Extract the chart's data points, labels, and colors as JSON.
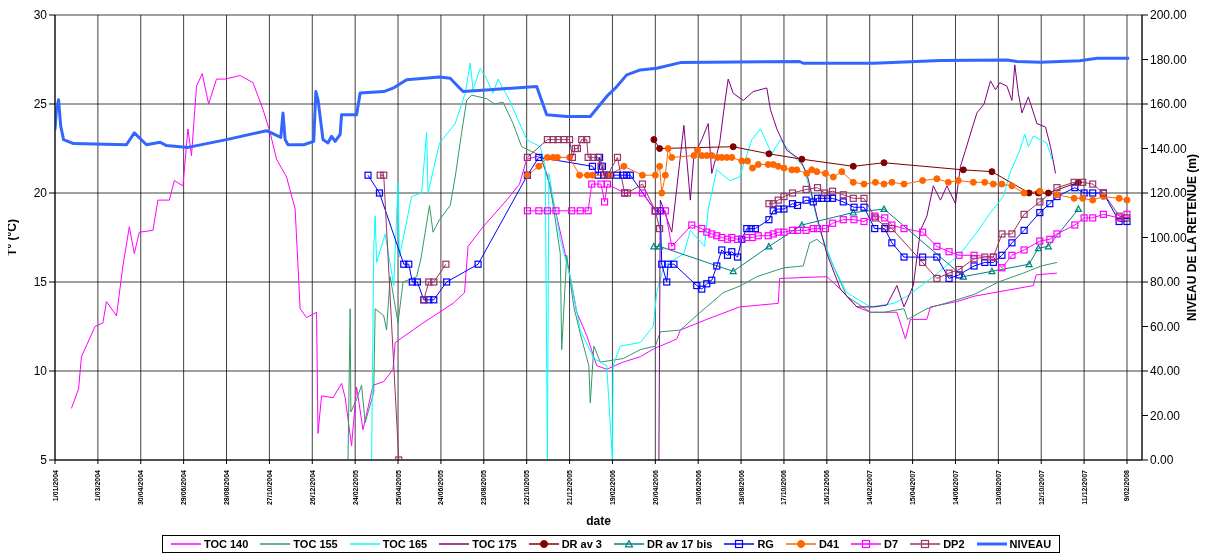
{
  "chart_data": {
    "type": "line",
    "xlabel": "date",
    "ylabel": "T°  (°C)",
    "y2label": "NIVEAU DE LA RETENUE (m)",
    "xlim": [
      "2004-01-01",
      "2008-03-01"
    ],
    "xticks": [
      {
        "value": "2004-01-01",
        "label": "1/01/2004"
      },
      {
        "value": "2004-03-01",
        "label": "1/03/2004"
      },
      {
        "value": "2004-04-30",
        "label": "30/04/2004"
      },
      {
        "value": "2004-06-29",
        "label": "29/06/2004"
      },
      {
        "value": "2004-08-28",
        "label": "28/08/2004"
      },
      {
        "value": "2004-10-27",
        "label": "27/10/2004"
      },
      {
        "value": "2004-12-26",
        "label": "26/12/2004"
      },
      {
        "value": "2005-02-24",
        "label": "24/02/2005"
      },
      {
        "value": "2005-04-25",
        "label": "25/04/2005"
      },
      {
        "value": "2005-06-24",
        "label": "24/06/2005"
      },
      {
        "value": "2005-08-23",
        "label": "23/08/2005"
      },
      {
        "value": "2005-10-22",
        "label": "22/10/2005"
      },
      {
        "value": "2005-12-21",
        "label": "21/12/2005"
      },
      {
        "value": "2006-02-19",
        "label": "19/02/2006"
      },
      {
        "value": "2006-04-20",
        "label": "20/04/2006"
      },
      {
        "value": "2006-06-19",
        "label": "19/06/2006"
      },
      {
        "value": "2006-08-18",
        "label": "18/08/2006"
      },
      {
        "value": "2006-10-17",
        "label": "17/10/2006"
      },
      {
        "value": "2006-12-16",
        "label": "16/12/2006"
      },
      {
        "value": "2007-02-14",
        "label": "14/02/2007"
      },
      {
        "value": "2007-04-15",
        "label": "15/04/2007"
      },
      {
        "value": "2007-06-14",
        "label": "14/06/2007"
      },
      {
        "value": "2007-08-13",
        "label": "13/08/2007"
      },
      {
        "value": "2007-10-12",
        "label": "12/10/2007"
      },
      {
        "value": "2007-12-11",
        "label": "11/12/2007"
      },
      {
        "value": "2008-02-09",
        "label": "9/02/2008"
      }
    ],
    "ylim": [
      5,
      30
    ],
    "yticks": [
      5,
      10,
      15,
      20,
      25,
      30
    ],
    "y2lim": [
      0,
      200
    ],
    "y2ticks": [
      {
        "value": 0,
        "label": "0.00"
      },
      {
        "value": 20,
        "label": "20.00"
      },
      {
        "value": 40,
        "label": "40.00"
      },
      {
        "value": 60,
        "label": "60.00"
      },
      {
        "value": 80,
        "label": "80.00"
      },
      {
        "value": 100,
        "label": "100.00"
      },
      {
        "value": 120,
        "label": "120.00"
      },
      {
        "value": 140,
        "label": "140.00"
      },
      {
        "value": 160,
        "label": "160.00"
      },
      {
        "value": 180,
        "label": "180.00"
      },
      {
        "value": 200,
        "label": "200.00"
      }
    ],
    "grid": true,
    "legend": "bottom",
    "series": [
      {
        "name": "TOC 140",
        "color": "#ff00ff",
        "marker": "none",
        "x": [
          "2004-01-24",
          "2004-02-03",
          "2004-02-07",
          "2004-02-26",
          "2004-03-08",
          "2004-03-13",
          "2004-03-27",
          "2004-04-05",
          "2004-04-14",
          "2004-04-21",
          "2004-04-28",
          "2004-05-17",
          "2004-05-24",
          "2004-06-09",
          "2004-06-16",
          "2004-06-28",
          "2004-07-05",
          "2004-07-10",
          "2004-07-17",
          "2004-07-25",
          "2004-08-03",
          "2004-08-14",
          "2004-08-26",
          "2004-09-16",
          "2004-10-04",
          "2004-10-18",
          "2004-10-28",
          "2004-11-06",
          "2004-11-20",
          "2004-12-02",
          "2004-12-09",
          "2004-12-18",
          "2005-01-01",
          "2005-01-03",
          "2005-01-08",
          "2005-01-24",
          "2005-02-05",
          "2005-02-10",
          "2005-02-19",
          "2005-02-26",
          "2005-03-07",
          "2005-03-21",
          "2005-04-05",
          "2005-04-18",
          "2005-04-21",
          "2005-05-30",
          "2005-07-11",
          "2005-07-27",
          "2005-08-01",
          "2005-08-22",
          "2005-09-24",
          "2005-10-12",
          "2005-10-22",
          "2005-11-10",
          "2005-11-19",
          "2005-12-03",
          "2005-12-22",
          "2005-12-31",
          "2006-01-14",
          "2006-01-28",
          "2006-02-11",
          "2006-03-06",
          "2006-03-30",
          "2006-04-20",
          "2006-04-27",
          "2006-05-20",
          "2006-05-25",
          "2006-07-01",
          "2006-08-16",
          "2006-10-09",
          "2006-10-11",
          "2006-12-16",
          "2007-01-04",
          "2007-01-27",
          "2007-02-15",
          "2007-03-24",
          "2007-04-05",
          "2007-04-12",
          "2007-05-05",
          "2007-05-10",
          "2007-06-16",
          "2007-07-10",
          "2007-10-01",
          "2007-10-05",
          "2007-11-03"
        ],
        "values": [
          7.9,
          9.0,
          10.8,
          12.5,
          12.7,
          13.9,
          13.1,
          15.9,
          18.1,
          16.6,
          17.8,
          17.9,
          19.6,
          19.6,
          20.7,
          20.4,
          23.6,
          22.1,
          26.0,
          26.7,
          25.0,
          26.4,
          26.4,
          26.6,
          26.2,
          24.7,
          23.4,
          21.9,
          20.9,
          19.1,
          13.5,
          13.0,
          13.3,
          6.5,
          8.6,
          8.5,
          9.3,
          8.5,
          5.8,
          9.1,
          6.7,
          9.2,
          9.4,
          10.1,
          11.6,
          12.7,
          13.8,
          14.4,
          17.0,
          18.1,
          19.6,
          20.5,
          21.9,
          22.1,
          21.1,
          18.7,
          15.3,
          13.3,
          12.0,
          10.3,
          10.1,
          10.5,
          10.8,
          11.3,
          11.4,
          11.8,
          12.3,
          12.9,
          13.6,
          13.8,
          15.2,
          15.3,
          14.6,
          13.6,
          13.3,
          13.3,
          11.8,
          12.9,
          12.9,
          13.6,
          13.9,
          14.2,
          14.8,
          15.4,
          15.5
        ]
      },
      {
        "name": "TOC 155",
        "color": "#339966",
        "marker": "none",
        "x": [
          "2005-02-14",
          "2005-02-17",
          "2005-02-18",
          "2005-02-26",
          "2005-03-05",
          "2005-03-10",
          "2005-03-22",
          "2005-03-24",
          "2005-04-05",
          "2005-04-09",
          "2005-04-14",
          "2005-04-25",
          "2005-05-02",
          "2005-05-21",
          "2005-05-27",
          "2005-06-08",
          "2005-06-13",
          "2005-06-22",
          "2005-07-07",
          "2005-07-14",
          "2005-07-23",
          "2005-07-30",
          "2005-08-06",
          "2005-08-27",
          "2005-09-07",
          "2005-09-19",
          "2005-10-03",
          "2005-10-15",
          "2005-11-10",
          "2005-11-24",
          "2005-12-08",
          "2005-12-10",
          "2005-12-17",
          "2005-12-27",
          "2006-01-05",
          "2006-01-17",
          "2006-01-19",
          "2006-01-24",
          "2006-02-02",
          "2006-03-06",
          "2006-03-30",
          "2006-04-20",
          "2006-04-27",
          "2006-05-25",
          "2006-06-19",
          "2006-07-24",
          "2006-08-18",
          "2006-09-09",
          "2006-10-17",
          "2006-11-13",
          "2006-11-22",
          "2006-12-02",
          "2006-12-14",
          "2006-12-25",
          "2007-01-13",
          "2007-02-15",
          "2007-03-06",
          "2007-04-03",
          "2007-04-08",
          "2007-05-05",
          "2007-06-16",
          "2007-07-10",
          "2007-08-13",
          "2007-09-17",
          "2007-10-12",
          "2007-11-03"
        ],
        "values": [
          5.0,
          13.5,
          7.7,
          8.4,
          9.2,
          7.1,
          8.8,
          13.5,
          13.1,
          12.3,
          15.3,
          12.7,
          15.0,
          15.3,
          16.3,
          19.3,
          17.8,
          18.5,
          19.3,
          20.9,
          23.4,
          25.2,
          25.5,
          25.3,
          25.0,
          25.1,
          23.9,
          22.6,
          22.1,
          20.4,
          16.6,
          11.2,
          16.5,
          13.6,
          12.1,
          10.3,
          8.2,
          11.4,
          10.5,
          10.7,
          11.2,
          11.4,
          12.2,
          12.3,
          13.2,
          14.4,
          14.8,
          15.3,
          15.8,
          15.9,
          17.2,
          17.4,
          17.0,
          15.9,
          14.2,
          13.3,
          13.3,
          13.5,
          12.9,
          13.5,
          14.0,
          14.3,
          15.0,
          15.5,
          15.9,
          16.1
        ]
      },
      {
        "name": "TOC 165",
        "color": "#00ffff",
        "marker": "none",
        "x": [
          "2005-03-19",
          "2005-03-22",
          "2005-03-24",
          "2005-03-26",
          "2005-04-07",
          "2005-04-19",
          "2005-04-25",
          "2005-04-27",
          "2005-05-14",
          "2005-05-28",
          "2005-06-04",
          "2005-06-06",
          "2005-06-22",
          "2005-07-14",
          "2005-07-28",
          "2005-08-04",
          "2005-08-08",
          "2005-08-18",
          "2005-08-27",
          "2005-09-05",
          "2005-09-12",
          "2005-09-28",
          "2005-10-22",
          "2005-11-10",
          "2005-11-17",
          "2005-11-20",
          "2005-11-22",
          "2005-12-08",
          "2005-12-22",
          "2006-01-05",
          "2006-01-24",
          "2006-02-11",
          "2006-02-19",
          "2006-02-20",
          "2006-03-02",
          "2006-03-30",
          "2006-04-17",
          "2006-04-22",
          "2006-05-02",
          "2006-05-30",
          "2006-06-08",
          "2006-06-28",
          "2006-07-03",
          "2006-07-15",
          "2006-08-02",
          "2006-08-16",
          "2006-09-02",
          "2006-09-14",
          "2006-09-30",
          "2006-10-12",
          "2006-10-30",
          "2006-11-13",
          "2006-11-22",
          "2006-12-06",
          "2006-12-25",
          "2007-01-13",
          "2007-02-15",
          "2007-03-20",
          "2007-04-07",
          "2007-05-14",
          "2007-06-21",
          "2007-07-14",
          "2007-08-02",
          "2007-08-20",
          "2007-08-29",
          "2007-09-12",
          "2007-09-19",
          "2007-09-24",
          "2007-10-01",
          "2007-10-20",
          "2007-10-27"
        ],
        "values": [
          5.0,
          16.8,
          18.7,
          16.1,
          17.7,
          14.8,
          20.6,
          16.4,
          19.8,
          20.0,
          23.4,
          20.0,
          22.8,
          23.9,
          25.6,
          27.3,
          25.8,
          27.0,
          26.4,
          25.6,
          26.4,
          25.2,
          23.0,
          22.6,
          21.5,
          5.0,
          21.1,
          17.4,
          15.3,
          12.3,
          10.7,
          10.3,
          5.0,
          10.3,
          11.4,
          11.6,
          12.5,
          14.4,
          15.9,
          16.6,
          17.9,
          17.0,
          19.1,
          21.3,
          20.7,
          20.9,
          23.0,
          23.6,
          22.2,
          23.0,
          22.1,
          21.5,
          20.2,
          17.9,
          15.9,
          14.4,
          13.6,
          13.8,
          14.2,
          15.3,
          16.6,
          17.8,
          18.9,
          19.8,
          21.1,
          22.4,
          23.3,
          22.6,
          23.2,
          22.8,
          21.9
        ]
      },
      {
        "name": "TOC 175",
        "color": "#800080",
        "marker": "none",
        "x": [
          "2006-04-25",
          "2006-04-27",
          "2006-05-13",
          "2006-05-30",
          "2006-06-08",
          "2006-06-13",
          "2006-06-24",
          "2006-07-03",
          "2006-07-08",
          "2006-07-19",
          "2006-07-26",
          "2006-07-31",
          "2006-08-07",
          "2006-08-21",
          "2006-09-04",
          "2006-09-23",
          "2006-09-28",
          "2006-10-07",
          "2006-10-21",
          "2006-11-08",
          "2006-11-18",
          "2006-12-02",
          "2006-12-16",
          "2007-01-04",
          "2007-01-27",
          "2007-02-20",
          "2007-03-10",
          "2007-03-24",
          "2007-04-03",
          "2007-04-16",
          "2007-04-26",
          "2007-05-05",
          "2007-05-14",
          "2007-05-24",
          "2007-06-02",
          "2007-06-14",
          "2007-06-21",
          "2007-06-28",
          "2007-07-07",
          "2007-07-14",
          "2007-07-24",
          "2007-08-02",
          "2007-08-09",
          "2007-08-15",
          "2007-08-25",
          "2007-09-01",
          "2007-09-05",
          "2007-09-10",
          "2007-09-15",
          "2007-09-24",
          "2007-10-06",
          "2007-10-18",
          "2007-10-25",
          "2007-11-01"
        ],
        "values": [
          5.0,
          19.6,
          17.8,
          23.8,
          19.6,
          22.1,
          23.0,
          23.9,
          21.1,
          22.8,
          25.0,
          26.4,
          25.6,
          25.2,
          25.7,
          25.9,
          24.7,
          23.6,
          22.4,
          21.9,
          21.1,
          18.7,
          16.6,
          14.6,
          13.6,
          13.6,
          13.7,
          14.8,
          13.6,
          14.8,
          17.9,
          18.7,
          20.4,
          19.6,
          20.4,
          19.4,
          21.5,
          22.4,
          23.6,
          24.5,
          25.0,
          26.3,
          25.8,
          26.2,
          26.0,
          25.2,
          27.2,
          25.6,
          24.5,
          25.4,
          23.9,
          23.7,
          22.6,
          21.1
        ]
      },
      {
        "name": "DR av 3",
        "color": "#800000",
        "marker": "circle",
        "x": [
          "2006-04-18",
          "2006-04-26",
          "2006-08-07",
          "2006-09-26",
          "2006-11-11",
          "2007-01-22",
          "2007-03-06",
          "2007-06-25",
          "2007-08-04",
          "2007-09-25",
          "2007-10-08",
          "2007-10-22",
          "2007-12-03"
        ],
        "values": [
          23.0,
          22.5,
          22.6,
          22.2,
          21.9,
          21.5,
          21.7,
          21.3,
          21.2,
          20.0,
          20.0,
          20.0,
          20.6
        ]
      },
      {
        "name": "DR av 17 bis",
        "color": "#008080",
        "marker": "triangle",
        "x": [
          "2006-04-18",
          "2006-04-26",
          "2006-08-07",
          "2006-09-26",
          "2006-11-11",
          "2007-01-22",
          "2007-03-06",
          "2007-06-25",
          "2007-08-04",
          "2007-09-25",
          "2007-10-08",
          "2007-10-22",
          "2007-12-03"
        ],
        "values": [
          17.0,
          17.0,
          15.6,
          17.0,
          18.2,
          18.9,
          19.1,
          15.3,
          15.6,
          16.0,
          16.9,
          17.0,
          19.1
        ]
      },
      {
        "name": "RG",
        "color": "#0000ff",
        "marker": "square",
        "x": [
          "2005-03-14",
          "2005-03-30",
          "2005-05-03",
          "2005-05-10",
          "2005-05-15",
          "2005-05-22",
          "2005-05-31",
          "2005-06-07",
          "2005-06-14",
          "2005-07-02",
          "2005-08-15",
          "2005-10-23",
          "2005-11-08",
          "2006-01-22",
          "2006-01-30",
          "2006-02-01",
          "2006-02-05",
          "2006-02-07",
          "2006-02-14",
          "2006-02-25",
          "2006-03-06",
          "2006-03-11",
          "2006-03-16",
          "2006-04-20",
          "2006-04-27",
          "2006-04-29",
          "2006-05-06",
          "2006-05-08",
          "2006-05-16",
          "2006-06-17",
          "2006-06-24",
          "2006-07-01",
          "2006-07-08",
          "2006-07-15",
          "2006-07-22",
          "2006-07-30",
          "2006-08-05",
          "2006-08-13",
          "2006-08-19",
          "2006-08-26",
          "2006-09-01",
          "2006-09-07",
          "2006-09-26",
          "2006-10-02",
          "2006-10-09",
          "2006-10-17",
          "2006-10-29",
          "2006-11-05",
          "2006-11-17",
          "2006-11-27",
          "2006-12-03",
          "2006-12-09",
          "2006-12-17",
          "2006-12-24",
          "2007-01-08",
          "2007-01-23",
          "2007-02-06",
          "2007-02-21",
          "2007-03-07",
          "2007-03-17",
          "2007-04-03",
          "2007-04-29",
          "2007-05-19",
          "2007-06-05",
          "2007-06-19",
          "2007-07-10",
          "2007-07-25",
          "2007-08-06",
          "2007-08-18",
          "2007-09-01",
          "2007-09-18",
          "2007-10-10",
          "2007-10-24",
          "2007-11-03",
          "2007-11-28",
          "2007-12-11",
          "2007-12-23",
          "2008-01-07",
          "2008-01-29",
          "2008-02-09"
        ],
        "values": [
          21.0,
          20.0,
          16.0,
          16.0,
          15.0,
          15.0,
          14.0,
          14.0,
          14.0,
          15.0,
          16.0,
          21.0,
          22.0,
          21.5,
          21.0,
          22.0,
          21.5,
          21.0,
          21.0,
          21.0,
          21.0,
          21.0,
          21.0,
          19.0,
          19.0,
          16.0,
          15.0,
          16.0,
          16.0,
          14.8,
          14.6,
          14.9,
          15.1,
          15.9,
          16.8,
          16.5,
          16.7,
          16.4,
          17.4,
          18.0,
          18.0,
          18.0,
          18.5,
          19.0,
          19.1,
          19.1,
          19.4,
          19.3,
          19.6,
          19.5,
          19.7,
          19.7,
          19.7,
          19.7,
          19.5,
          19.2,
          19.2,
          18.0,
          18.0,
          17.2,
          16.4,
          16.4,
          16.4,
          15.2,
          15.4,
          15.9,
          16.1,
          16.1,
          16.5,
          17.2,
          17.9,
          18.9,
          19.4,
          19.8,
          20.3,
          20.0,
          20.0,
          20.0,
          18.4,
          18.4
        ]
      },
      {
        "name": "D41",
        "color": "#ff6600",
        "marker": "circle",
        "x": [
          "2005-10-23",
          "2005-11-08",
          "2005-11-20",
          "2005-11-28",
          "2005-12-04",
          "2005-12-21",
          "2006-01-04",
          "2006-01-15",
          "2006-01-22",
          "2006-02-15",
          "2006-03-07",
          "2006-04-02",
          "2006-04-20",
          "2006-04-26",
          "2006-04-29",
          "2006-05-04",
          "2006-05-08",
          "2006-05-13",
          "2006-06-13",
          "2006-06-18",
          "2006-06-24",
          "2006-07-01",
          "2006-07-08",
          "2006-07-16",
          "2006-07-22",
          "2006-07-29",
          "2006-08-05",
          "2006-08-19",
          "2006-08-27",
          "2006-09-03",
          "2006-09-11",
          "2006-09-25",
          "2006-10-02",
          "2006-10-09",
          "2006-10-17",
          "2006-10-28",
          "2006-11-04",
          "2006-11-18",
          "2006-11-25",
          "2006-12-02",
          "2006-12-14",
          "2006-12-25",
          "2007-01-06",
          "2007-01-22",
          "2007-02-06",
          "2007-02-22",
          "2007-03-06",
          "2007-03-17",
          "2007-04-03",
          "2007-04-29",
          "2007-05-19",
          "2007-06-04",
          "2007-06-18",
          "2007-07-09",
          "2007-07-25",
          "2007-08-06",
          "2007-08-18",
          "2007-09-01",
          "2007-09-18",
          "2007-10-10",
          "2007-11-03",
          "2007-11-27",
          "2007-12-09",
          "2007-12-23",
          "2008-01-07",
          "2008-01-29",
          "2008-02-09"
        ],
        "values": [
          21.0,
          21.5,
          22.0,
          22.0,
          22.0,
          22.0,
          21.0,
          21.0,
          21.0,
          21.0,
          21.5,
          21.0,
          21.0,
          21.5,
          20.0,
          21.0,
          22.5,
          22.0,
          22.1,
          22.4,
          22.1,
          22.1,
          22.1,
          22.0,
          22.0,
          22.0,
          22.0,
          21.8,
          21.8,
          21.4,
          21.6,
          21.6,
          21.6,
          21.5,
          21.4,
          21.3,
          21.3,
          21.1,
          21.3,
          21.2,
          21.1,
          20.9,
          21.2,
          20.6,
          20.5,
          20.6,
          20.5,
          20.6,
          20.5,
          20.7,
          20.8,
          20.6,
          20.7,
          20.6,
          20.6,
          20.5,
          20.5,
          20.4,
          20.0,
          20.1,
          19.9,
          19.7,
          19.7,
          19.6,
          19.8,
          19.7,
          19.6
        ]
      },
      {
        "name": "D7",
        "color": "#ff00ff",
        "marker": "square",
        "x": [
          "2005-10-23",
          "2005-11-08",
          "2005-11-20",
          "2005-12-02",
          "2005-12-24",
          "2006-01-05",
          "2006-01-16",
          "2006-01-21",
          "2006-02-03",
          "2006-02-08",
          "2006-02-12",
          "2006-03-08",
          "2006-04-02",
          "2006-04-20",
          "2006-05-04",
          "2006-05-13",
          "2006-06-10",
          "2006-06-24",
          "2006-07-01",
          "2006-07-08",
          "2006-07-15",
          "2006-07-22",
          "2006-07-30",
          "2006-08-05",
          "2006-08-13",
          "2006-08-26",
          "2006-09-03",
          "2006-09-11",
          "2006-09-25",
          "2006-10-02",
          "2006-10-09",
          "2006-10-17",
          "2006-10-29",
          "2006-11-05",
          "2006-11-17",
          "2006-11-27",
          "2006-12-03",
          "2006-12-14",
          "2006-12-24",
          "2007-01-08",
          "2007-01-23",
          "2007-02-06",
          "2007-02-21",
          "2007-03-07",
          "2007-03-17",
          "2007-04-03",
          "2007-04-29",
          "2007-05-19",
          "2007-06-05",
          "2007-06-19",
          "2007-07-10",
          "2007-08-06",
          "2007-08-18",
          "2007-09-01",
          "2007-09-18",
          "2007-10-10",
          "2007-10-24",
          "2007-11-03",
          "2007-11-28",
          "2007-12-11",
          "2007-12-23",
          "2008-01-07",
          "2008-01-29",
          "2008-02-09"
        ],
        "values": [
          19.0,
          19.0,
          19.0,
          19.0,
          19.0,
          19.0,
          19.0,
          20.5,
          20.5,
          19.5,
          20.5,
          20.0,
          20.0,
          19.0,
          19.0,
          17.0,
          18.2,
          18.0,
          17.8,
          17.7,
          17.6,
          17.5,
          17.4,
          17.5,
          17.4,
          17.5,
          17.5,
          17.6,
          17.6,
          17.7,
          17.8,
          17.8,
          17.9,
          17.9,
          17.9,
          18.0,
          18.0,
          18.0,
          18.3,
          18.5,
          18.5,
          18.4,
          18.7,
          18.6,
          18.2,
          18.0,
          17.8,
          17.0,
          16.7,
          16.5,
          16.5,
          16.4,
          15.8,
          16.5,
          16.8,
          17.3,
          17.4,
          17.7,
          18.2,
          18.6,
          18.6,
          18.8,
          18.6,
          18.8
        ]
      },
      {
        "name": "DP2",
        "color": "#993366",
        "marker": "square",
        "x": [
          "2005-03-31",
          "2005-04-05",
          "2005-04-26",
          "2005-05-15",
          "2005-05-31",
          "2005-06-07",
          "2005-06-14",
          "2005-07-01",
          "2005-08-30",
          "2005-10-23",
          "2005-11-20",
          "2005-11-28",
          "2005-12-05",
          "2005-12-13",
          "2005-12-21",
          "2005-12-25",
          "2005-12-29",
          "2006-01-01",
          "2006-01-07",
          "2006-01-14",
          "2006-01-16",
          "2006-01-23",
          "2006-01-30",
          "2006-02-03",
          "2006-02-08",
          "2006-02-12",
          "2006-02-26",
          "2006-03-08",
          "2006-03-12",
          "2006-04-02",
          "2006-04-20",
          "2006-04-26",
          "2006-07-01",
          "2006-09-26",
          "2006-10-02",
          "2006-10-09",
          "2006-10-17",
          "2006-10-29",
          "2006-11-17",
          "2006-12-03",
          "2006-12-13",
          "2006-12-24",
          "2007-01-08",
          "2007-01-22",
          "2007-02-06",
          "2007-02-22",
          "2007-03-08",
          "2007-03-17",
          "2007-04-29",
          "2007-05-19",
          "2007-06-05",
          "2007-06-19",
          "2007-07-10",
          "2007-07-25",
          "2007-08-06",
          "2007-08-18",
          "2007-09-01",
          "2007-09-18",
          "2007-10-10",
          "2007-11-03",
          "2007-11-27",
          "2007-12-09",
          "2007-12-23",
          "2008-01-07",
          "2008-01-29",
          "2008-02-08"
        ],
        "values": [
          21.0,
          21.0,
          5.0,
          null,
          14.0,
          15.0,
          15.0,
          16.0,
          null,
          22.0,
          23.0,
          23.0,
          23.0,
          23.0,
          23.0,
          22.0,
          22.5,
          22.5,
          23.0,
          23.0,
          22.0,
          22.0,
          22.0,
          21.5,
          21.0,
          21.0,
          22.0,
          20.0,
          20.0,
          20.5,
          19.0,
          18.0,
          null,
          19.4,
          19.4,
          19.6,
          19.8,
          20.0,
          20.2,
          20.3,
          20.0,
          20.1,
          19.9,
          19.7,
          19.7,
          18.6,
          18.1,
          18.0,
          16.1,
          15.2,
          15.5,
          15.7,
          16.3,
          16.4,
          16.4,
          17.7,
          17.7,
          18.8,
          19.5,
          20.3,
          20.6,
          20.6,
          20.5,
          20.0,
          18.7,
          18.6
        ]
      },
      {
        "name": "NIVEAU",
        "color": "#3366ff",
        "marker": "none",
        "axis": "y2",
        "x": [
          "2004-01-01",
          "2004-01-03",
          "2004-01-06",
          "2004-01-09",
          "2004-01-13",
          "2004-01-27",
          "2004-04-10",
          "2004-04-21",
          "2004-05-08",
          "2004-05-27",
          "2004-06-05",
          "2004-07-05",
          "2004-08-28",
          "2004-10-23",
          "2004-11-12",
          "2004-11-15",
          "2004-11-18",
          "2004-11-22",
          "2004-12-14",
          "2004-12-28",
          "2004-12-31",
          "2005-01-03",
          "2005-01-10",
          "2005-01-17",
          "2005-01-22",
          "2005-01-27",
          "2005-02-03",
          "2005-02-05",
          "2005-02-26",
          "2005-03-03",
          "2005-04-05",
          "2005-04-18",
          "2005-05-07",
          "2005-06-22",
          "2005-07-07",
          "2005-07-18",
          "2005-07-25",
          "2005-08-31",
          "2005-11-05",
          "2005-11-19",
          "2005-12-17",
          "2006-01-19",
          "2006-02-11",
          "2006-02-23",
          "2006-03-11",
          "2006-03-30",
          "2006-04-22",
          "2006-05-25",
          "2006-11-08",
          "2006-11-13",
          "2007-02-20",
          "2007-05-24",
          "2007-08-25",
          "2007-09-08",
          "2007-10-11",
          "2007-12-05",
          "2007-12-29",
          "2008-02-12"
        ],
        "values": [
          148.5,
          157.4,
          161.9,
          150.0,
          144.0,
          142.2,
          141.7,
          147.0,
          141.7,
          142.8,
          141.3,
          140.5,
          144.0,
          148.0,
          145.0,
          155.9,
          144.0,
          141.7,
          141.7,
          143.2,
          165.6,
          161.9,
          144.0,
          142.5,
          145.5,
          143.2,
          146.3,
          155.2,
          155.2,
          164.9,
          165.6,
          167.1,
          170.9,
          172.1,
          171.6,
          167.9,
          165.6,
          166.4,
          167.9,
          155.2,
          154.4,
          154.4,
          163.4,
          167.1,
          173.1,
          175.3,
          176.1,
          178.6,
          179.1,
          178.3,
          178.3,
          179.5,
          179.8,
          179.1,
          178.8,
          179.4,
          180.6,
          180.6
        ]
      }
    ]
  }
}
